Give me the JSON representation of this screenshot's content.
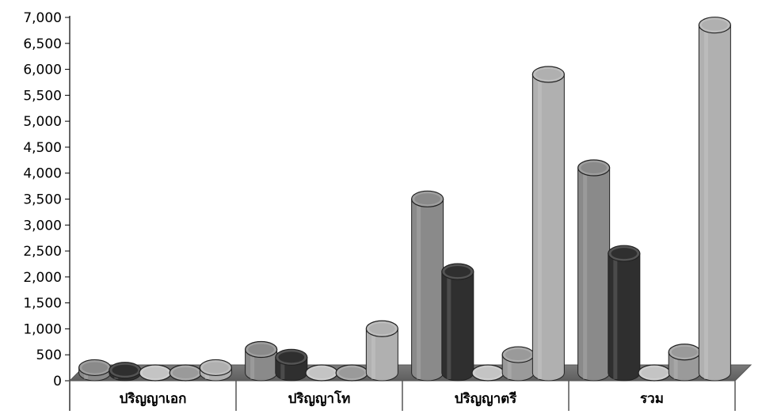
{
  "chart_data": {
    "type": "bar",
    "style": "3d-cylinder",
    "categories": [
      "ปริญญาเอก",
      "ปริญญาโท",
      "ปริญญาตรี",
      "รวม"
    ],
    "series": [
      {
        "color": "#8a8a8a",
        "values": [
          100,
          450,
          3350,
          3950
        ]
      },
      {
        "color": "#2f2f2f",
        "values": [
          50,
          300,
          1950,
          2300
        ]
      },
      {
        "color": "#c4c4c4",
        "values": [
          0,
          0,
          0,
          0
        ]
      },
      {
        "color": "#9a9a9a",
        "values": [
          0,
          0,
          350,
          400
        ]
      },
      {
        "color": "#b0b0b0",
        "values": [
          100,
          850,
          5750,
          6700
        ]
      }
    ],
    "y_ticks": [
      "7,000",
      "6,500",
      "6,000",
      "5,500",
      "5,000",
      "4,500",
      "4,000",
      "3,500",
      "3,000",
      "2,500",
      "2,000",
      "1,500",
      "1,000",
      "500",
      "0"
    ],
    "ylim": [
      0,
      7000
    ],
    "grid": false,
    "legend": "none"
  }
}
